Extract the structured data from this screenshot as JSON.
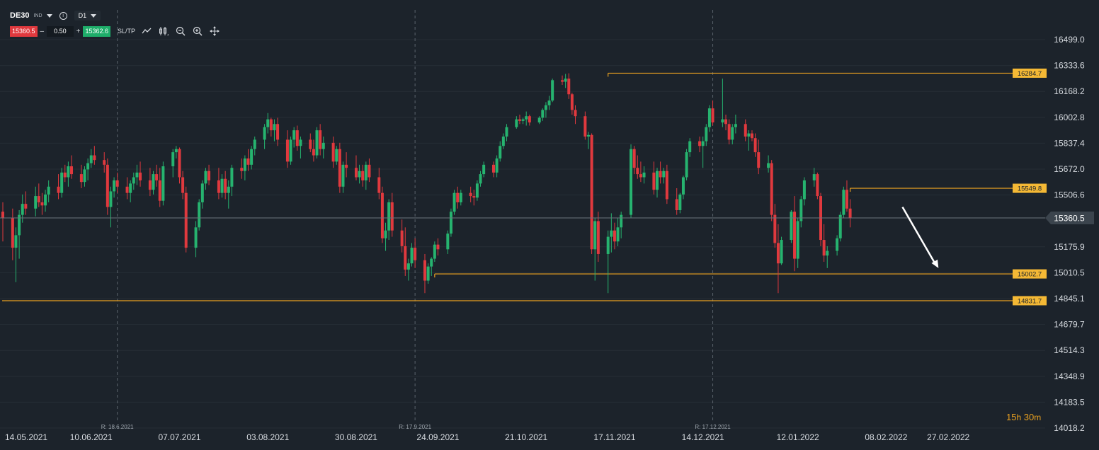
{
  "toolbar": {
    "symbol": "DE30",
    "symbol_type": "IND",
    "interval": "D1",
    "sell_price": "15360.5",
    "volume": "0.50",
    "buy_price": "15362.6",
    "minus_label": "–",
    "plus_label": "+",
    "sltp_label": "SL/TP",
    "icons": [
      "line-chart-icon",
      "candle-type-icon",
      "zoom-out-icon",
      "zoom-in-icon",
      "move-icon"
    ]
  },
  "timer": {
    "hours": "15",
    "hours_unit": "h",
    "minutes": "30",
    "minutes_unit": "m"
  },
  "colors": {
    "background": "#1c232b",
    "up": "#26b36f",
    "down": "#e0393e",
    "level": "#e8a020",
    "level_label": "#f5b935",
    "grid": "#262e36"
  },
  "chart_data": {
    "type": "candlestick",
    "instrument": "DE30",
    "timeframe": "D1",
    "ylim": [
      14018.2,
      16499.0
    ],
    "y_ticks": [
      "16499.0",
      "16333.6",
      "16168.2",
      "16002.8",
      "15837.4",
      "15672.0",
      "15506.6",
      "15360.5",
      "15175.9",
      "15010.5",
      "14845.1",
      "14679.7",
      "14514.3",
      "14348.9",
      "14183.5",
      "14018.2"
    ],
    "x_ticks": [
      "14.05.2021",
      "10.06.2021",
      "07.07.2021",
      "03.08.2021",
      "30.08.2021",
      "24.09.2021",
      "21.10.2021",
      "17.11.2021",
      "14.12.2021",
      "12.01.2022",
      "08.02.2022",
      "27.02.2022"
    ],
    "rollover_markers": [
      "R: 18.6.2021",
      "R: 17.9.2021",
      "R: 17.12.2021"
    ],
    "current_price": "15360.5",
    "levels": [
      {
        "label": "16284.7",
        "value": 16284.7,
        "from": "15.11.2021"
      },
      {
        "label": "15549.8",
        "value": 15549.8,
        "from": "28.01.2022"
      },
      {
        "label": "15002.7",
        "value": 15002.7,
        "from": "23.09.2021"
      },
      {
        "label": "14831.7",
        "value": 14831.7,
        "from": "14.05.2021"
      }
    ],
    "projection": {
      "from": {
        "date": "13.02.2022",
        "value": 15430
      },
      "to": {
        "date": "24.02.2022",
        "value": 15040
      }
    },
    "candles": [
      [
        15400,
        15460,
        15210,
        15360
      ],
      [
        15360,
        15420,
        15090,
        15170
      ],
      [
        15170,
        15300,
        14950,
        15250
      ],
      [
        15250,
        15410,
        15100,
        15380
      ],
      [
        15380,
        15510,
        15330,
        15450
      ],
      [
        15450,
        15530,
        15380,
        15420
      ],
      [
        15420,
        15560,
        15370,
        15500
      ],
      [
        15500,
        15580,
        15430,
        15460
      ],
      [
        15460,
        15520,
        15380,
        15440
      ],
      [
        15440,
        15540,
        15400,
        15510
      ],
      [
        15510,
        15600,
        15460,
        15560
      ],
      [
        15560,
        15640,
        15480,
        15520
      ],
      [
        15520,
        15680,
        15490,
        15650
      ],
      [
        15650,
        15700,
        15590,
        15620
      ],
      [
        15620,
        15720,
        15560,
        15690
      ],
      [
        15690,
        15760,
        15610,
        15640
      ],
      [
        15640,
        15700,
        15550,
        15590
      ],
      [
        15590,
        15690,
        15560,
        15670
      ],
      [
        15670,
        15740,
        15600,
        15710
      ],
      [
        15710,
        15800,
        15680,
        15760
      ],
      [
        15760,
        15820,
        15700,
        15730
      ],
      [
        15730,
        15780,
        15650,
        15700
      ],
      [
        15700,
        15740,
        15380,
        15430
      ],
      [
        15430,
        15560,
        15300,
        15530
      ],
      [
        15530,
        15620,
        15490,
        15600
      ],
      [
        15600,
        15650,
        15520,
        15560
      ],
      [
        15560,
        15620,
        15480,
        15520
      ],
      [
        15520,
        15600,
        15460,
        15580
      ],
      [
        15580,
        15650,
        15540,
        15620
      ],
      [
        15620,
        15700,
        15570,
        15650
      ],
      [
        15650,
        15720,
        15560,
        15600
      ],
      [
        15600,
        15680,
        15500,
        15540
      ],
      [
        15540,
        15660,
        15510,
        15640
      ],
      [
        15640,
        15700,
        15560,
        15600
      ],
      [
        15600,
        15680,
        15430,
        15470
      ],
      [
        15470,
        15720,
        15440,
        15690
      ],
      [
        15690,
        15800,
        15620,
        15780
      ],
      [
        15780,
        15820,
        15740,
        15800
      ],
      [
        15800,
        15810,
        15580,
        15620
      ],
      [
        15620,
        15660,
        15480,
        15520
      ],
      [
        15520,
        15560,
        15140,
        15170
      ],
      [
        15170,
        15340,
        15110,
        15300
      ],
      [
        15300,
        15480,
        15280,
        15460
      ],
      [
        15460,
        15600,
        15420,
        15580
      ],
      [
        15580,
        15680,
        15540,
        15660
      ],
      [
        15660,
        15700,
        15570,
        15600
      ],
      [
        15600,
        15680,
        15480,
        15520
      ],
      [
        15520,
        15640,
        15490,
        15610
      ],
      [
        15610,
        15660,
        15480,
        15520
      ],
      [
        15520,
        15600,
        15420,
        15560
      ],
      [
        15560,
        15700,
        15500,
        15680
      ],
      [
        15680,
        15740,
        15610,
        15660
      ],
      [
        15660,
        15760,
        15600,
        15740
      ],
      [
        15740,
        15800,
        15660,
        15700
      ],
      [
        15700,
        15820,
        15670,
        15800
      ],
      [
        15800,
        15880,
        15760,
        15860
      ],
      [
        15860,
        15960,
        15800,
        15940
      ],
      [
        15940,
        16030,
        15900,
        15990
      ],
      [
        15990,
        16000,
        15880,
        15920
      ],
      [
        15920,
        15990,
        15850,
        15960
      ],
      [
        15960,
        16000,
        15820,
        15860
      ],
      [
        15860,
        15920,
        15680,
        15720
      ],
      [
        15720,
        15880,
        15700,
        15860
      ],
      [
        15860,
        15940,
        15810,
        15920
      ],
      [
        15920,
        15950,
        15790,
        15820
      ],
      [
        15820,
        15880,
        15740,
        15860
      ],
      [
        15860,
        15900,
        15780,
        15800
      ],
      [
        15800,
        15860,
        15720,
        15760
      ],
      [
        15760,
        15940,
        15740,
        15920
      ],
      [
        15920,
        15960,
        15760,
        15800
      ],
      [
        15800,
        15880,
        15740,
        15840
      ],
      [
        15840,
        15880,
        15680,
        15720
      ],
      [
        15720,
        15820,
        15700,
        15800
      ],
      [
        15800,
        15840,
        15520,
        15560
      ],
      [
        15560,
        15720,
        15520,
        15700
      ],
      [
        15700,
        15780,
        15620,
        15680
      ],
      [
        15680,
        15760,
        15600,
        15620
      ],
      [
        15620,
        15700,
        15580,
        15660
      ],
      [
        15660,
        15700,
        15560,
        15600
      ],
      [
        15600,
        15720,
        15540,
        15700
      ],
      [
        15700,
        15740,
        15590,
        15620
      ],
      [
        15620,
        15680,
        15480,
        15520
      ],
      [
        15520,
        15560,
        15200,
        15230
      ],
      [
        15230,
        15330,
        15150,
        15280
      ],
      [
        15280,
        15480,
        15220,
        15460
      ],
      [
        15460,
        15520,
        15240,
        15280
      ],
      [
        15280,
        15350,
        15140,
        15180
      ],
      [
        15180,
        15300,
        14990,
        15030
      ],
      [
        15030,
        15100,
        14960,
        15070
      ],
      [
        15070,
        15200,
        15050,
        15170
      ],
      [
        15170,
        15230,
        15040,
        15090
      ],
      [
        15090,
        15130,
        14880,
        14960
      ],
      [
        14960,
        15070,
        14940,
        15050
      ],
      [
        15050,
        15110,
        14990,
        15100
      ],
      [
        15100,
        15210,
        15080,
        15190
      ],
      [
        15190,
        15230,
        15120,
        15160
      ],
      [
        15160,
        15280,
        15130,
        15260
      ],
      [
        15260,
        15420,
        15240,
        15400
      ],
      [
        15400,
        15540,
        15380,
        15520
      ],
      [
        15520,
        15560,
        15420,
        15460
      ],
      [
        15460,
        15540,
        15440,
        15520
      ],
      [
        15520,
        15560,
        15460,
        15500
      ],
      [
        15500,
        15540,
        15440,
        15490
      ],
      [
        15490,
        15600,
        15470,
        15580
      ],
      [
        15580,
        15660,
        15560,
        15640
      ],
      [
        15640,
        15720,
        15620,
        15700
      ],
      [
        15700,
        15720,
        15620,
        15650
      ],
      [
        15650,
        15760,
        15620,
        15740
      ],
      [
        15740,
        15850,
        15720,
        15820
      ],
      [
        15820,
        15900,
        15800,
        15880
      ],
      [
        15880,
        15960,
        15850,
        15940
      ],
      [
        15940,
        16010,
        15930,
        15990
      ],
      [
        15990,
        16020,
        15960,
        15980
      ],
      [
        15980,
        16000,
        15960,
        15990
      ],
      [
        15990,
        16040,
        15950,
        16010
      ],
      [
        16010,
        16020,
        15950,
        15970
      ],
      [
        15970,
        16010,
        15960,
        16000
      ],
      [
        16000,
        16060,
        15980,
        16050
      ],
      [
        16050,
        16100,
        16000,
        16080
      ],
      [
        16080,
        16140,
        16050,
        16110
      ],
      [
        16110,
        16250,
        16100,
        16240
      ],
      [
        16240,
        16270,
        16210,
        16230
      ],
      [
        16230,
        16280,
        16190,
        16250
      ],
      [
        16250,
        16284,
        16120,
        16150
      ],
      [
        16150,
        16160,
        16020,
        16050
      ],
      [
        16050,
        16080,
        15960,
        16010
      ],
      [
        16010,
        16040,
        15860,
        15880
      ],
      [
        15880,
        15910,
        15800,
        15890
      ],
      [
        15890,
        15900,
        15130,
        15160
      ],
      [
        15160,
        15360,
        14960,
        15340
      ],
      [
        15340,
        15400,
        15080,
        15130
      ],
      [
        15130,
        15280,
        14880,
        15240
      ],
      [
        15240,
        15390,
        15140,
        15280
      ],
      [
        15280,
        15330,
        15160,
        15210
      ],
      [
        15210,
        15360,
        15180,
        15300
      ],
      [
        15300,
        15400,
        15230,
        15380
      ],
      [
        15380,
        15830,
        15360,
        15800
      ],
      [
        15800,
        15820,
        15640,
        15680
      ],
      [
        15680,
        15760,
        15610,
        15640
      ],
      [
        15640,
        15720,
        15590,
        15620
      ],
      [
        15620,
        15690,
        15580,
        15650
      ],
      [
        15650,
        15720,
        15510,
        15540
      ],
      [
        15540,
        15680,
        15490,
        15660
      ],
      [
        15660,
        15720,
        15580,
        15620
      ],
      [
        15620,
        15680,
        15580,
        15660
      ],
      [
        15660,
        15700,
        15450,
        15480
      ],
      [
        15480,
        15550,
        15380,
        15410
      ],
      [
        15410,
        15520,
        15390,
        15510
      ],
      [
        15510,
        15630,
        15480,
        15620
      ],
      [
        15620,
        15800,
        15600,
        15780
      ],
      [
        15780,
        15870,
        15750,
        15850
      ],
      [
        15850,
        15880,
        15780,
        15820
      ],
      [
        15820,
        15880,
        15680,
        15850
      ],
      [
        15850,
        15960,
        15820,
        15940
      ],
      [
        15940,
        16080,
        15910,
        16060
      ],
      [
        16060,
        16110,
        15950,
        15970
      ],
      [
        15970,
        16250,
        15940,
        15990
      ],
      [
        15990,
        16020,
        15920,
        15960
      ],
      [
        15960,
        15990,
        15830,
        15860
      ],
      [
        15860,
        15960,
        15830,
        15940
      ],
      [
        15940,
        16020,
        15900,
        15960
      ],
      [
        15960,
        15990,
        15850,
        15880
      ],
      [
        15880,
        15920,
        15790,
        15900
      ],
      [
        15900,
        15920,
        15850,
        15870
      ],
      [
        15870,
        15900,
        15750,
        15780
      ],
      [
        15780,
        15860,
        15640,
        15680
      ],
      [
        15680,
        15760,
        15650,
        15710
      ],
      [
        15710,
        15730,
        15340,
        15380
      ],
      [
        15380,
        15450,
        15170,
        15200
      ],
      [
        15200,
        15320,
        14880,
        15070
      ],
      [
        15070,
        15240,
        15060,
        15220
      ],
      [
        15220,
        15410,
        15200,
        15400
      ],
      [
        15400,
        15500,
        15020,
        15100
      ],
      [
        15100,
        15360,
        15040,
        15340
      ],
      [
        15340,
        15500,
        15300,
        15480
      ],
      [
        15480,
        15620,
        15440,
        15600
      ],
      [
        15600,
        15680,
        15560,
        15640
      ],
      [
        15640,
        15650,
        15480,
        15500
      ],
      [
        15500,
        15520,
        15180,
        15220
      ],
      [
        15220,
        15320,
        15080,
        15120
      ],
      [
        15120,
        15180,
        15040,
        15150
      ],
      [
        15150,
        15250,
        15120,
        15230
      ],
      [
        15230,
        15400,
        15210,
        15380
      ],
      [
        15380,
        15560,
        15360,
        15540
      ],
      [
        15540,
        15600,
        15400,
        15420
      ],
      [
        15420,
        15480,
        15300,
        15360
      ]
    ]
  }
}
